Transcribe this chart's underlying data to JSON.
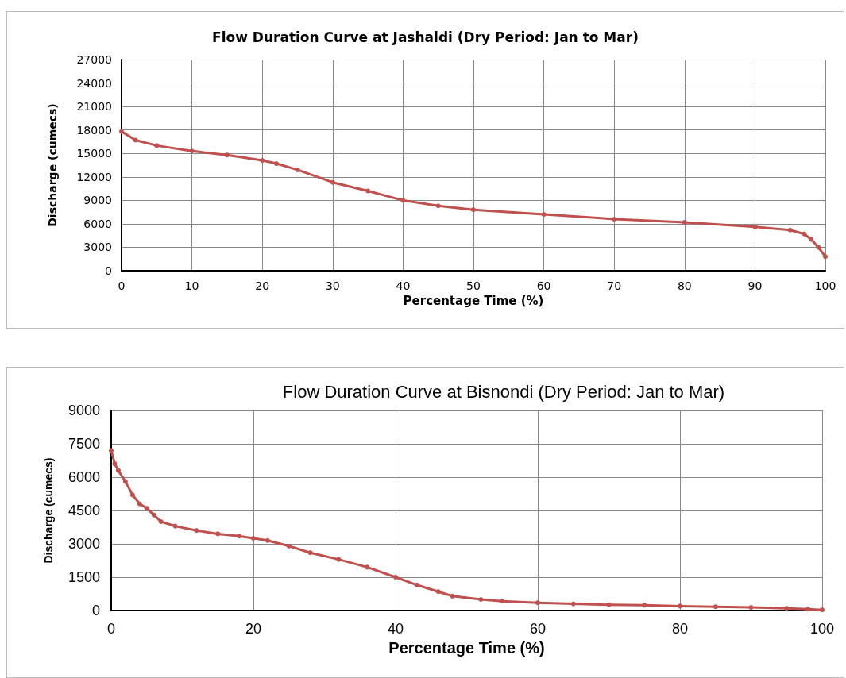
{
  "chart_data": [
    {
      "type": "line",
      "title": "Flow Duration Curve at Jashaldi (Dry Period: Jan to Mar)",
      "xlabel": "Percentage Time (%)",
      "ylabel": "Discharge (cumecs)",
      "x": [
        0,
        2,
        5,
        10,
        15,
        20,
        22,
        25,
        30,
        35,
        40,
        45,
        50,
        60,
        70,
        80,
        90,
        95,
        97,
        98,
        99,
        100
      ],
      "series": [
        {
          "color": "#c0504d",
          "values": [
            17800,
            16700,
            16000,
            15300,
            14800,
            14100,
            13700,
            12900,
            11300,
            10200,
            9000,
            8300,
            7800,
            7200,
            6600,
            6200,
            5600,
            5200,
            4700,
            4000,
            3000,
            1800
          ]
        }
      ],
      "xlim": [
        0,
        100
      ],
      "xticks": [
        0,
        10,
        20,
        30,
        40,
        50,
        60,
        70,
        80,
        90,
        100
      ],
      "ylim": [
        0,
        27000
      ],
      "yticks": [
        0,
        3000,
        6000,
        9000,
        12000,
        15000,
        18000,
        21000,
        24000,
        27000
      ],
      "grid": true,
      "marker": "circle",
      "line_style": "solid"
    },
    {
      "type": "line",
      "title": "Flow Duration Curve at Bisnondi (Dry Period: Jan to Mar)",
      "xlabel": "Percentage Time (%)",
      "ylabel": "Discharge (cumecs)",
      "x": [
        0,
        0.5,
        1,
        2,
        3,
        4,
        5,
        6,
        7,
        9,
        12,
        15,
        18,
        20,
        22,
        25,
        28,
        32,
        36,
        40,
        43,
        46,
        48,
        52,
        55,
        60,
        65,
        70,
        75,
        80,
        85,
        90,
        95,
        98,
        100
      ],
      "series": [
        {
          "color": "#c0504d",
          "values": [
            7200,
            6600,
            6300,
            5800,
            5200,
            4800,
            4600,
            4300,
            4000,
            3800,
            3600,
            3450,
            3350,
            3250,
            3150,
            2900,
            2600,
            2300,
            1950,
            1500,
            1150,
            850,
            650,
            500,
            420,
            350,
            300,
            260,
            240,
            200,
            170,
            140,
            100,
            60,
            30
          ]
        }
      ],
      "xlim": [
        0,
        100
      ],
      "xticks": [
        0,
        20,
        40,
        60,
        80,
        100
      ],
      "ylim": [
        0,
        9000
      ],
      "yticks": [
        0,
        1500,
        3000,
        4500,
        6000,
        7500,
        9000
      ],
      "grid": true,
      "marker": "circle",
      "line_style": "solid"
    }
  ]
}
